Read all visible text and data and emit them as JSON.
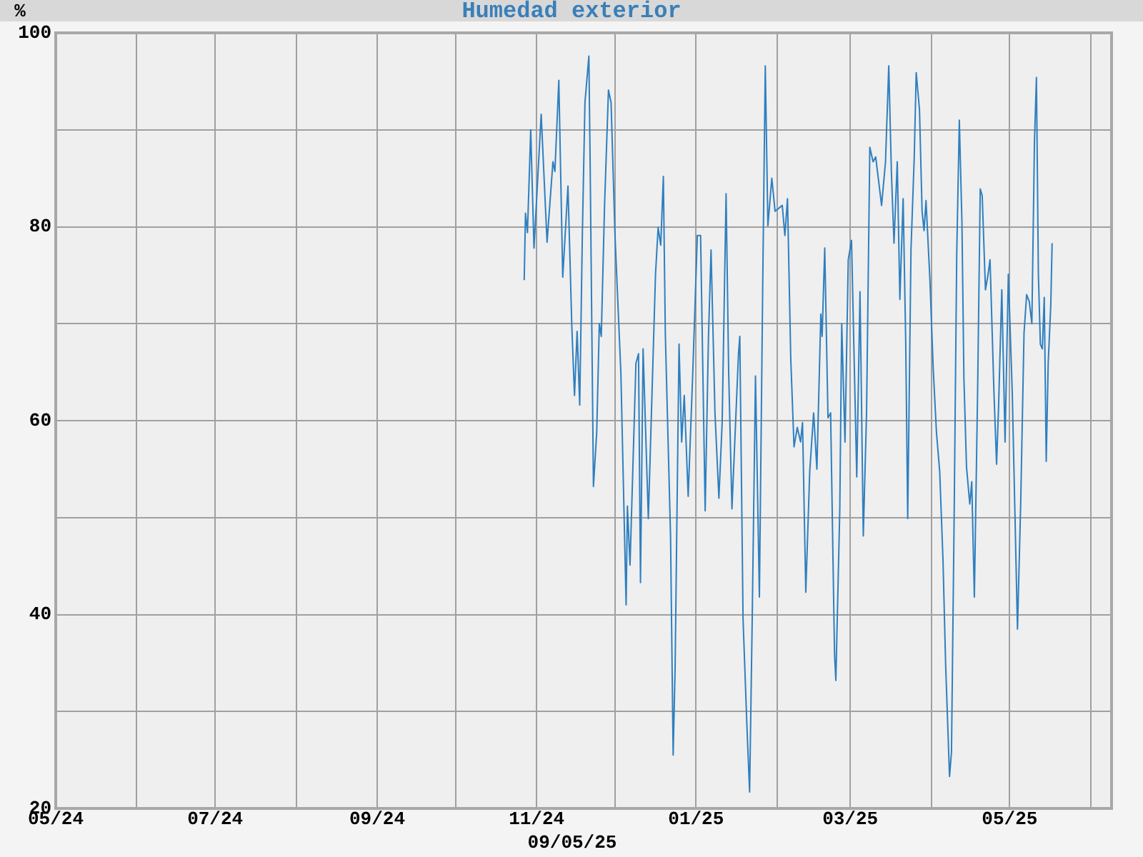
{
  "chart_data": {
    "type": "line",
    "title": "Humedad exterior",
    "ylabel": "%",
    "annotations": [
      "09/05/25"
    ],
    "xlim": [
      "2024-05-01",
      "2025-06-09"
    ],
    "xticks": [
      {
        "value": "2024-05",
        "label": "05/24"
      },
      {
        "value": "2024-06",
        "label": null
      },
      {
        "value": "2024-07",
        "label": "07/24"
      },
      {
        "value": "2024-08",
        "label": null
      },
      {
        "value": "2024-09",
        "label": "09/24"
      },
      {
        "value": "2024-10",
        "label": null
      },
      {
        "value": "2024-11",
        "label": "11/24"
      },
      {
        "value": "2024-12",
        "label": null
      },
      {
        "value": "2025-01",
        "label": "01/25"
      },
      {
        "value": "2025-02",
        "label": null
      },
      {
        "value": "2025-03",
        "label": "03/25"
      },
      {
        "value": "2025-04",
        "label": null
      },
      {
        "value": "2025-05",
        "label": "05/25"
      },
      {
        "value": "2025-06",
        "label": null
      }
    ],
    "ylim": [
      20,
      100
    ],
    "yticks": [
      20,
      {
        "value": 30,
        "label": null
      },
      40,
      {
        "value": 50,
        "label": null
      },
      60,
      {
        "value": 70,
        "label": null
      },
      80,
      {
        "value": 90,
        "label": null
      },
      100
    ],
    "grid": true,
    "legend": false,
    "marker": "none",
    "line_style": "solid",
    "series": [
      {
        "color": "#2f7fbf",
        "x": [
          "2024-10-27T06:00",
          "2024-10-27T18:00",
          "2024-10-28T12:00",
          "2024-10-29T18:00",
          "2024-10-31T00:00",
          "2024-11-02T18:00",
          "2024-11-05T00:00",
          "2024-11-07T06:00",
          "2024-11-08T00:00",
          "2024-11-09T12:00",
          "2024-11-11T00:00",
          "2024-11-13T00:00",
          "2024-11-14T12:00",
          "2024-11-15T12:00",
          "2024-11-16T12:00",
          "2024-11-17T12:00",
          "2024-11-18T12:00",
          "2024-11-19T12:00",
          "2024-11-21T00:00",
          "2024-11-21T12:00",
          "2024-11-22T18:00",
          "2024-11-24T00:00",
          "2024-11-25T00:00",
          "2024-11-25T18:00",
          "2024-11-27T00:00",
          "2024-11-28T12:00",
          "2024-11-29T12:00",
          "2024-12-01T00:00",
          "2024-12-03T06:00",
          "2024-12-05T06:00",
          "2024-12-05T18:00",
          "2024-12-06T18:00",
          "2024-12-09T00:00",
          "2024-12-10T00:00",
          "2024-12-10T18:00",
          "2024-12-11T18:00",
          "2024-12-13T18:00",
          "2024-12-16T12:00",
          "2024-12-17T12:00",
          "2024-12-18T12:00",
          "2024-12-19T12:00",
          "2024-12-20T06:00",
          "2024-12-22T06:00",
          "2024-12-23T06:00",
          "2024-12-24T00:00",
          "2024-12-25T12:00",
          "2024-12-26T12:00",
          "2024-12-27T12:00",
          "2024-12-29T00:00",
          "2024-12-30T18:00",
          "2025-01-01T12:00",
          "2025-01-02T18:00",
          "2025-01-04T12:00",
          "2025-01-05T18:00",
          "2025-01-06T18:00",
          "2025-01-08T06:00",
          "2025-01-09T18:00",
          "2025-01-11T00:00",
          "2025-01-12T12:00",
          "2025-01-13T12:00",
          "2025-01-14T18:00",
          "2025-01-17T06:00",
          "2025-01-17T18:00",
          "2025-01-19T00:00",
          "2025-01-20T12:00",
          "2025-01-21T12:00",
          "2025-01-22T12:00",
          "2025-01-23T18:00",
          "2025-01-25T06:00",
          "2025-01-26T12:00",
          "2025-01-27T12:00",
          "2025-01-28T12:00",
          "2025-01-30T00:00",
          "2025-01-31T06:00",
          "2025-02-03T00:00",
          "2025-02-04T00:00",
          "2025-02-05T00:00",
          "2025-02-06T06:00",
          "2025-02-07T12:00",
          "2025-02-08T18:00",
          "2025-02-10T00:00",
          "2025-02-10T18:00",
          "2025-02-12T00:00",
          "2025-02-13T12:00",
          "2025-02-15T00:00",
          "2025-02-16T06:00",
          "2025-02-17T18:00",
          "2025-02-18T06:00",
          "2025-02-19T06:00",
          "2025-02-20T12:00",
          "2025-02-21T12:00",
          "2025-02-23T00:00",
          "2025-02-23T12:00",
          "2025-02-25T00:00",
          "2025-02-25T18:00",
          "2025-02-27T00:00",
          "2025-02-28T06:00",
          "2025-03-01T12:00",
          "2025-03-03T12:00",
          "2025-03-04T18:00",
          "2025-03-06T00:00",
          "2025-03-07T06:00",
          "2025-03-08T12:00",
          "2025-03-09T18:00",
          "2025-03-10T18:00",
          "2025-03-13T00:00",
          "2025-03-14T12:00",
          "2025-03-15T18:00",
          "2025-03-16T18:00",
          "2025-03-17T18:00",
          "2025-03-19T00:00",
          "2025-03-20T00:00",
          "2025-03-21T06:00",
          "2025-03-22T06:00",
          "2025-03-23T00:00",
          "2025-03-24T06:00",
          "2025-03-25T12:00",
          "2025-03-26T06:00",
          "2025-03-27T12:00",
          "2025-03-28T12:00",
          "2025-03-29T06:00",
          "2025-03-30T00:00",
          "2025-03-31T12:00",
          "2025-04-01T18:00",
          "2025-04-03T00:00",
          "2025-04-04T06:00",
          "2025-04-05T12:00",
          "2025-04-06T12:00",
          "2025-04-08T00:00",
          "2025-04-08T18:00",
          "2025-04-09T18:00",
          "2025-04-10T18:00",
          "2025-04-11T18:00",
          "2025-04-12T18:00",
          "2025-04-13T12:00",
          "2025-04-14T12:00",
          "2025-04-15T18:00",
          "2025-04-16T12:00",
          "2025-04-17T12:00",
          "2025-04-18T18:00",
          "2025-04-19T18:00",
          "2025-04-20T12:00",
          "2025-04-21T18:00",
          "2025-04-22T18:00",
          "2025-04-23T12:00",
          "2025-04-25T00:00",
          "2025-04-26T00:00",
          "2025-04-26T18:00",
          "2025-04-28T00:00",
          "2025-04-29T06:00",
          "2025-04-30T12:00",
          "2025-05-02T00:00",
          "2025-05-03T00:00",
          "2025-05-04T00:00",
          "2025-05-05T06:00",
          "2025-05-06T12:00",
          "2025-05-07T12:00",
          "2025-05-08T12:00",
          "2025-05-09T12:00",
          "2025-05-10T12:00",
          "2025-05-11T06:00",
          "2025-05-12T00:00",
          "2025-05-12T18:00",
          "2025-05-13T12:00",
          "2025-05-14T06:00",
          "2025-05-15T00:00",
          "2025-05-15T18:00",
          "2025-05-16T18:00",
          "2025-05-17T06:00"
        ],
        "values": [
          74.5,
          81.4,
          79.4,
          90.0,
          77.8,
          91.6,
          78.4,
          86.7,
          85.7,
          95.1,
          74.8,
          84.2,
          69.5,
          62.6,
          69.2,
          61.6,
          79.1,
          92.8,
          97.6,
          86.2,
          53.2,
          58.8,
          70.0,
          68.7,
          82.2,
          94.1,
          92.8,
          79.1,
          64.9,
          41.0,
          51.2,
          45.1,
          65.9,
          66.9,
          43.3,
          67.4,
          49.9,
          75.1,
          79.9,
          78.1,
          85.2,
          69.0,
          48.1,
          25.5,
          34.5,
          67.9,
          57.8,
          62.6,
          52.2,
          64.9,
          79.1,
          79.1,
          50.7,
          68.5,
          77.6,
          60.8,
          52.0,
          59.8,
          83.4,
          64.9,
          50.9,
          66.9,
          68.7,
          39.5,
          28.3,
          21.7,
          39.5,
          64.6,
          41.8,
          73.5,
          96.6,
          80.1,
          85.0,
          81.6,
          82.2,
          79.1,
          82.9,
          66.4,
          57.3,
          59.3,
          57.8,
          59.8,
          42.3,
          54.7,
          60.8,
          55.0,
          71.0,
          68.7,
          77.8,
          60.3,
          60.8,
          35.9,
          33.2,
          50.7,
          70.0,
          57.8,
          76.6,
          78.6,
          54.2,
          73.3,
          48.1,
          60.8,
          88.2,
          86.7,
          87.2,
          82.2,
          86.7,
          96.6,
          85.7,
          78.3,
          86.7,
          72.5,
          82.9,
          67.9,
          49.9,
          77.6,
          87.2,
          95.9,
          92.1,
          81.6,
          79.6,
          82.7,
          74.5,
          65.4,
          58.8,
          54.7,
          45.6,
          34.9,
          23.3,
          25.8,
          49.7,
          77.1,
          91.0,
          80.4,
          64.4,
          55.2,
          51.4,
          53.7,
          41.8,
          63.1,
          83.9,
          83.2,
          73.5,
          75.1,
          76.6,
          62.9,
          55.5,
          61.3,
          73.5,
          57.8,
          75.1,
          62.9,
          50.7,
          38.5,
          51.7,
          69.0,
          73.0,
          72.3,
          70.0,
          88.8,
          95.4,
          75.1,
          67.9,
          67.4,
          72.7,
          55.8,
          65.9,
          72.0,
          78.3
        ]
      }
    ]
  }
}
